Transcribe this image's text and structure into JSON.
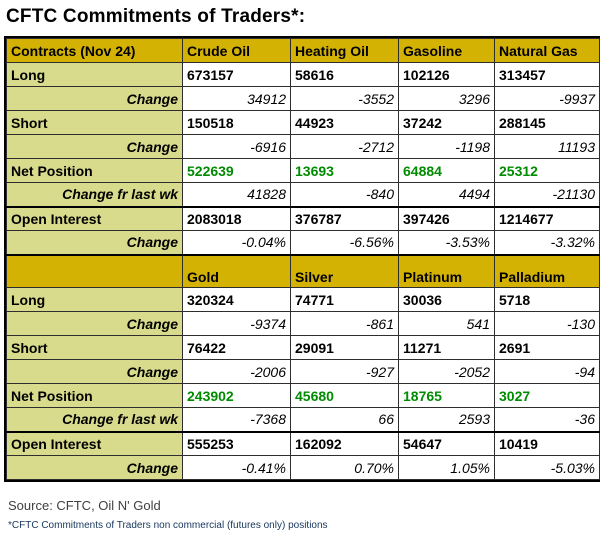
{
  "page": {
    "title": "CFTC Commitments of Traders*:",
    "source": "Source: CFTC, Oil N' Gold",
    "footnote": "*CFTC Commitments of Traders non commercial (futures only) positions"
  },
  "colors": {
    "header_gold": "#D4B204",
    "label_olive": "#D8DB8C",
    "net_green": "#008C00",
    "footnote_navy": "#16365C"
  },
  "chart_data": [
    {
      "type": "table",
      "title": "CFTC Commitments of Traders (energy, Nov 24)",
      "columns": [
        "Contracts (Nov 24)",
        "Crude Oil",
        "Heating Oil",
        "Gasoline",
        "Natural Gas"
      ],
      "rows": [
        {
          "label": "Long",
          "kind": "value",
          "values": [
            "673157",
            "58616",
            "102126",
            "313457"
          ]
        },
        {
          "label": "Change",
          "kind": "change",
          "values": [
            "34912",
            "-3552",
            "3296",
            "-9937"
          ]
        },
        {
          "label": "Short",
          "kind": "value",
          "values": [
            "150518",
            "44923",
            "37242",
            "288145"
          ]
        },
        {
          "label": "Change",
          "kind": "change",
          "values": [
            "-6916",
            "-2712",
            "-1198",
            "11193"
          ]
        },
        {
          "label": "Net Position",
          "kind": "net",
          "values": [
            "522639",
            "13693",
            "64884",
            "25312"
          ]
        },
        {
          "label": "Change fr last wk",
          "kind": "change",
          "values": [
            "41828",
            "-840",
            "4494",
            "-21130"
          ]
        },
        {
          "label": "Open Interest",
          "kind": "value",
          "thick_top": true,
          "values": [
            "2083018",
            "376787",
            "397426",
            "1214677"
          ]
        },
        {
          "label": "Change",
          "kind": "change",
          "values": [
            "-0.04%",
            "-6.56%",
            "-3.53%",
            "-3.32%"
          ]
        }
      ]
    },
    {
      "type": "table",
      "title": "CFTC Commitments of Traders (metals, Nov 24)",
      "columns": [
        "",
        "Gold",
        "Silver",
        "Platinum",
        "Palladium"
      ],
      "rows": [
        {
          "label": "Long",
          "kind": "value",
          "values": [
            "320324",
            "74771",
            "30036",
            "5718"
          ]
        },
        {
          "label": "Change",
          "kind": "change",
          "values": [
            "-9374",
            "-861",
            "541",
            "-130"
          ]
        },
        {
          "label": "Short",
          "kind": "value",
          "values": [
            "76422",
            "29091",
            "11271",
            "2691"
          ]
        },
        {
          "label": "Change",
          "kind": "change",
          "values": [
            "-2006",
            "-927",
            "-2052",
            "-94"
          ]
        },
        {
          "label": "Net Position",
          "kind": "net",
          "values": [
            "243902",
            "45680",
            "18765",
            "3027"
          ]
        },
        {
          "label": "Change fr last wk",
          "kind": "change",
          "values": [
            "-7368",
            "66",
            "2593",
            "-36"
          ]
        },
        {
          "label": "Open Interest",
          "kind": "value",
          "thick_top": true,
          "values": [
            "555253",
            "162092",
            "54647",
            "10419"
          ]
        },
        {
          "label": "Change",
          "kind": "change",
          "values": [
            "-0.41%",
            "0.70%",
            "1.05%",
            "-5.03%"
          ]
        }
      ]
    }
  ]
}
